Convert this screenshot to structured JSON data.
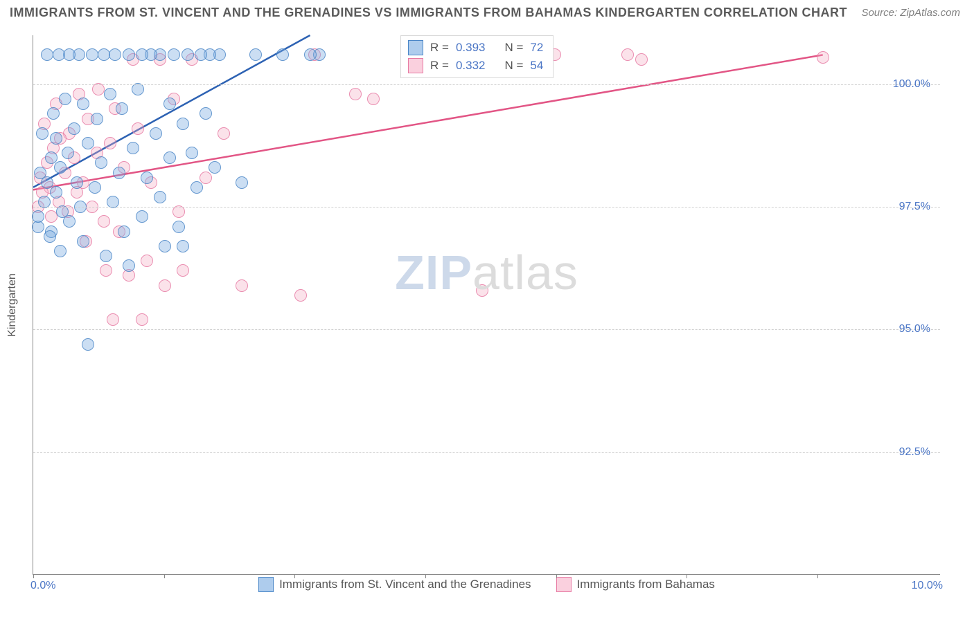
{
  "title": "IMMIGRANTS FROM ST. VINCENT AND THE GRENADINES VS IMMIGRANTS FROM BAHAMAS KINDERGARTEN CORRELATION CHART",
  "source_label": "Source: ZipAtlas.com",
  "watermark": {
    "part1": "ZIP",
    "part2": "atlas"
  },
  "chart": {
    "type": "scatter",
    "y_label": "Kindergarten",
    "xlim": [
      0.0,
      10.0
    ],
    "ylim": [
      90.0,
      101.0
    ],
    "y_ticks": [
      92.5,
      95.0,
      97.5,
      100.0
    ],
    "y_tick_labels": [
      "92.5%",
      "95.0%",
      "97.5%",
      "100.0%"
    ],
    "x_min_label": "0.0%",
    "x_max_label": "10.0%",
    "x_tick_positions": [
      0.0,
      1.44,
      2.88,
      4.32,
      5.76,
      7.2,
      8.64
    ],
    "background_color": "#ffffff",
    "grid_color": "#d0d0d0",
    "series": [
      {
        "name": "Immigrants from St. Vincent and the Grenadines",
        "color_fill": "rgba(120,170,225,0.45)",
        "color_stroke": "#4a86c7",
        "line_color": "#2d62b3",
        "marker_radius": 9,
        "R": "0.393",
        "N": "72",
        "trend": {
          "x1": 0.0,
          "y1": 97.9,
          "x2": 3.05,
          "y2": 101.0
        },
        "points": [
          [
            0.05,
            97.3
          ],
          [
            0.05,
            97.1
          ],
          [
            0.08,
            98.2
          ],
          [
            0.1,
            99.0
          ],
          [
            0.12,
            97.6
          ],
          [
            0.15,
            98.0
          ],
          [
            0.15,
            100.6
          ],
          [
            0.18,
            96.9
          ],
          [
            0.2,
            98.5
          ],
          [
            0.2,
            97.0
          ],
          [
            0.22,
            99.4
          ],
          [
            0.25,
            98.9
          ],
          [
            0.25,
            97.8
          ],
          [
            0.28,
            100.6
          ],
          [
            0.3,
            98.3
          ],
          [
            0.3,
            96.6
          ],
          [
            0.32,
            97.4
          ],
          [
            0.35,
            99.7
          ],
          [
            0.38,
            98.6
          ],
          [
            0.4,
            100.6
          ],
          [
            0.4,
            97.2
          ],
          [
            0.45,
            99.1
          ],
          [
            0.48,
            98.0
          ],
          [
            0.5,
            100.6
          ],
          [
            0.52,
            97.5
          ],
          [
            0.55,
            96.8
          ],
          [
            0.55,
            99.6
          ],
          [
            0.6,
            98.8
          ],
          [
            0.6,
            94.7
          ],
          [
            0.65,
            100.6
          ],
          [
            0.68,
            97.9
          ],
          [
            0.7,
            99.3
          ],
          [
            0.75,
            98.4
          ],
          [
            0.78,
            100.6
          ],
          [
            0.8,
            96.5
          ],
          [
            0.85,
            99.8
          ],
          [
            0.88,
            97.6
          ],
          [
            0.9,
            100.6
          ],
          [
            0.95,
            98.2
          ],
          [
            0.98,
            99.5
          ],
          [
            1.0,
            97.0
          ],
          [
            1.05,
            100.6
          ],
          [
            1.05,
            96.3
          ],
          [
            1.1,
            98.7
          ],
          [
            1.15,
            99.9
          ],
          [
            1.2,
            97.3
          ],
          [
            1.2,
            100.6
          ],
          [
            1.25,
            98.1
          ],
          [
            1.3,
            100.6
          ],
          [
            1.35,
            99.0
          ],
          [
            1.4,
            97.7
          ],
          [
            1.4,
            100.6
          ],
          [
            1.45,
            96.7
          ],
          [
            1.5,
            98.5
          ],
          [
            1.5,
            99.6
          ],
          [
            1.55,
            100.6
          ],
          [
            1.6,
            97.1
          ],
          [
            1.65,
            96.7
          ],
          [
            1.65,
            99.2
          ],
          [
            1.7,
            100.6
          ],
          [
            1.75,
            98.6
          ],
          [
            1.8,
            97.9
          ],
          [
            1.85,
            100.6
          ],
          [
            1.9,
            99.4
          ],
          [
            1.95,
            100.6
          ],
          [
            2.0,
            98.3
          ],
          [
            2.05,
            100.6
          ],
          [
            2.3,
            98.0
          ],
          [
            2.45,
            100.6
          ],
          [
            2.75,
            100.6
          ],
          [
            3.05,
            100.6
          ],
          [
            3.15,
            100.6
          ]
        ]
      },
      {
        "name": "Immigrants from Bahamas",
        "color_fill": "rgba(245,170,195,0.40)",
        "color_stroke": "#e77aa3",
        "line_color": "#e25585",
        "marker_radius": 9,
        "R": "0.332",
        "N": "54",
        "trend": {
          "x1": 0.0,
          "y1": 97.85,
          "x2": 8.7,
          "y2": 100.6
        },
        "points": [
          [
            0.05,
            97.5
          ],
          [
            0.08,
            98.1
          ],
          [
            0.1,
            97.8
          ],
          [
            0.12,
            99.2
          ],
          [
            0.15,
            98.4
          ],
          [
            0.18,
            97.9
          ],
          [
            0.2,
            97.3
          ],
          [
            0.22,
            98.7
          ],
          [
            0.25,
            99.6
          ],
          [
            0.28,
            97.6
          ],
          [
            0.3,
            98.9
          ],
          [
            0.35,
            98.2
          ],
          [
            0.38,
            97.4
          ],
          [
            0.4,
            99.0
          ],
          [
            0.45,
            98.5
          ],
          [
            0.48,
            97.8
          ],
          [
            0.5,
            99.8
          ],
          [
            0.55,
            98.0
          ],
          [
            0.58,
            96.8
          ],
          [
            0.6,
            99.3
          ],
          [
            0.65,
            97.5
          ],
          [
            0.7,
            98.6
          ],
          [
            0.72,
            99.9
          ],
          [
            0.78,
            97.2
          ],
          [
            0.8,
            96.2
          ],
          [
            0.85,
            98.8
          ],
          [
            0.88,
            95.2
          ],
          [
            0.9,
            99.5
          ],
          [
            0.95,
            97.0
          ],
          [
            1.0,
            98.3
          ],
          [
            1.05,
            96.1
          ],
          [
            1.1,
            100.5
          ],
          [
            1.15,
            99.1
          ],
          [
            1.2,
            95.2
          ],
          [
            1.25,
            96.4
          ],
          [
            1.3,
            98.0
          ],
          [
            1.4,
            100.5
          ],
          [
            1.45,
            95.9
          ],
          [
            1.55,
            99.7
          ],
          [
            1.6,
            97.4
          ],
          [
            1.65,
            96.2
          ],
          [
            1.75,
            100.5
          ],
          [
            1.9,
            98.1
          ],
          [
            2.1,
            99.0
          ],
          [
            2.3,
            95.9
          ],
          [
            2.95,
            95.7
          ],
          [
            3.1,
            100.6
          ],
          [
            3.55,
            99.8
          ],
          [
            3.75,
            99.7
          ],
          [
            4.95,
            95.8
          ],
          [
            5.75,
            100.6
          ],
          [
            6.55,
            100.6
          ],
          [
            6.7,
            100.5
          ],
          [
            8.7,
            100.55
          ]
        ]
      }
    ]
  },
  "legend_bottom": [
    {
      "swatch": "blue",
      "label": "Immigrants from St. Vincent and the Grenadines"
    },
    {
      "swatch": "pink",
      "label": "Immigrants from Bahamas"
    }
  ]
}
